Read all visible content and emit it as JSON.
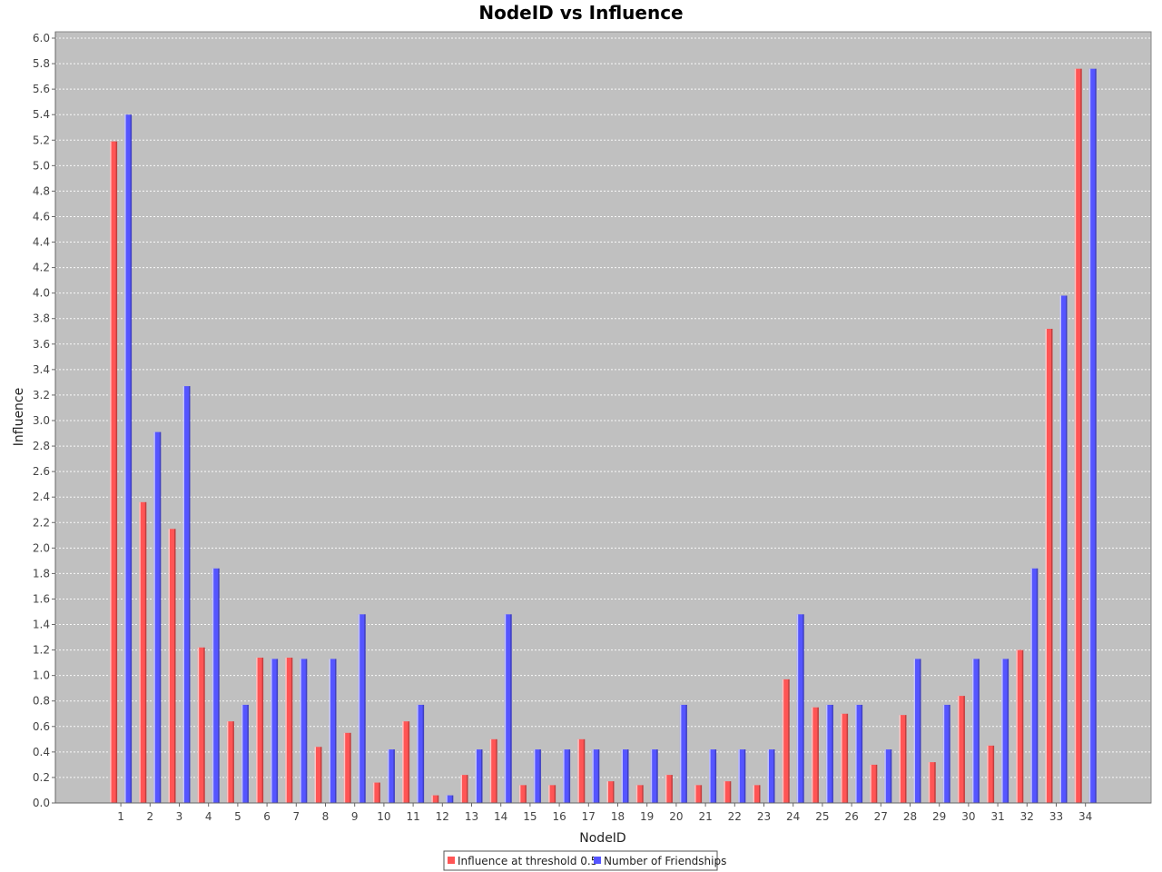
{
  "chart_data": {
    "type": "bar",
    "title": "NodeID vs Influence",
    "xlabel": "NodeID",
    "ylabel": "Influence",
    "ylim": [
      0,
      6.0
    ],
    "ytick_step": 0.2,
    "grid": true,
    "legend_position": "bottom-center",
    "categories": [
      "1",
      "2",
      "3",
      "4",
      "5",
      "6",
      "7",
      "8",
      "9",
      "10",
      "11",
      "12",
      "13",
      "14",
      "15",
      "16",
      "17",
      "18",
      "19",
      "20",
      "21",
      "22",
      "23",
      "24",
      "25",
      "26",
      "27",
      "28",
      "29",
      "30",
      "31",
      "32",
      "33",
      "34"
    ],
    "series": [
      {
        "name": "Influence at threshold 0.5",
        "color": "#ff5555",
        "values": [
          5.19,
          2.36,
          2.15,
          1.22,
          0.64,
          1.14,
          1.14,
          0.44,
          0.55,
          0.16,
          0.64,
          0.06,
          0.22,
          0.5,
          0.14,
          0.14,
          0.5,
          0.17,
          0.14,
          0.22,
          0.14,
          0.17,
          0.14,
          0.97,
          0.75,
          0.7,
          0.3,
          0.69,
          0.32,
          0.84,
          0.45,
          1.2,
          3.72,
          5.76
        ]
      },
      {
        "name": "Number of Friendships",
        "color": "#5555ff",
        "values": [
          5.4,
          2.91,
          3.27,
          1.84,
          0.77,
          1.13,
          1.13,
          1.13,
          1.48,
          0.42,
          0.77,
          0.06,
          0.42,
          1.48,
          0.42,
          0.42,
          0.42,
          0.42,
          0.42,
          0.77,
          0.42,
          0.42,
          0.42,
          1.48,
          0.77,
          0.77,
          0.42,
          1.13,
          0.77,
          1.13,
          1.13,
          1.84,
          3.98,
          5.76
        ]
      }
    ]
  }
}
